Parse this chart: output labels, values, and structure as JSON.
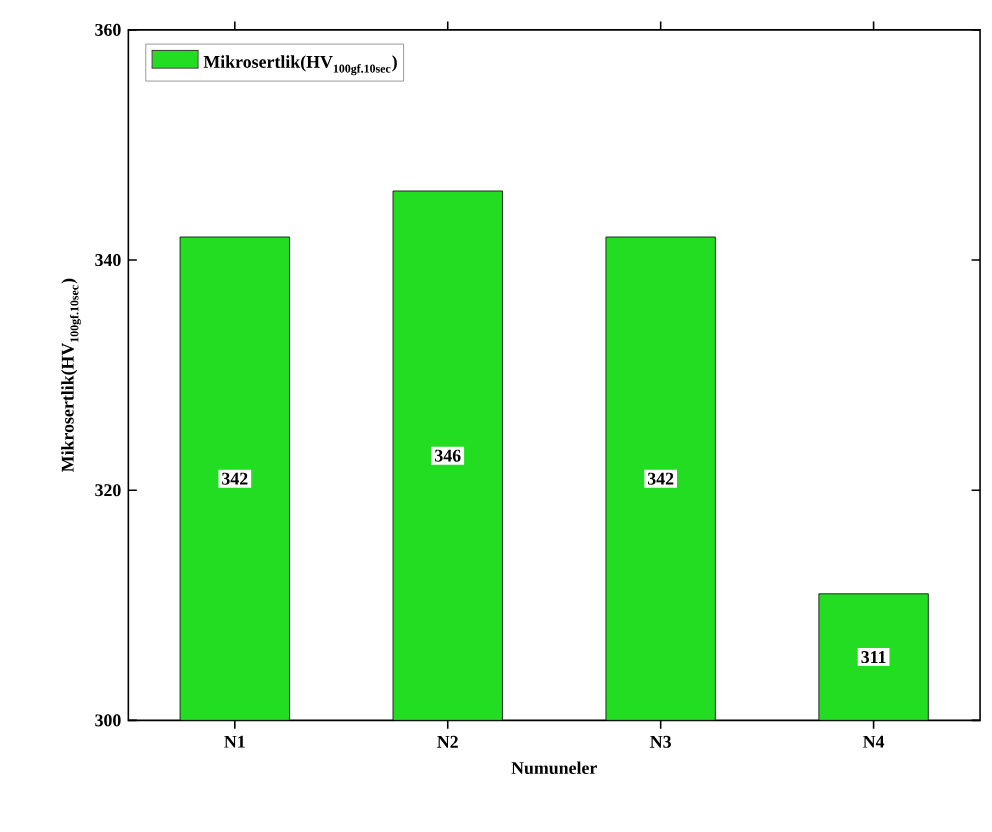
{
  "chart_data": {
    "type": "bar",
    "xlabel": "Numuneler",
    "ylabel": "\\textbf{Mikrosertlik(HV}_{\\textbf{100gf.10sec}}\\textbf{)}",
    "categories": [
      "N1",
      "N2",
      "N3",
      "N4"
    ],
    "series": [
      {
        "name": "\\textbf{Mikrosertlik(HV}_{\\textbf{100gf.10sec}}\\textbf{)}",
        "color": "#22dd22",
        "values": [
          342,
          346,
          342,
          311
        ]
      }
    ],
    "ylim": [
      300,
      360
    ],
    "yticks": [
      300,
      320,
      340,
      360
    ],
    "data_labels": true,
    "legend": "top left",
    "grid": false
  }
}
